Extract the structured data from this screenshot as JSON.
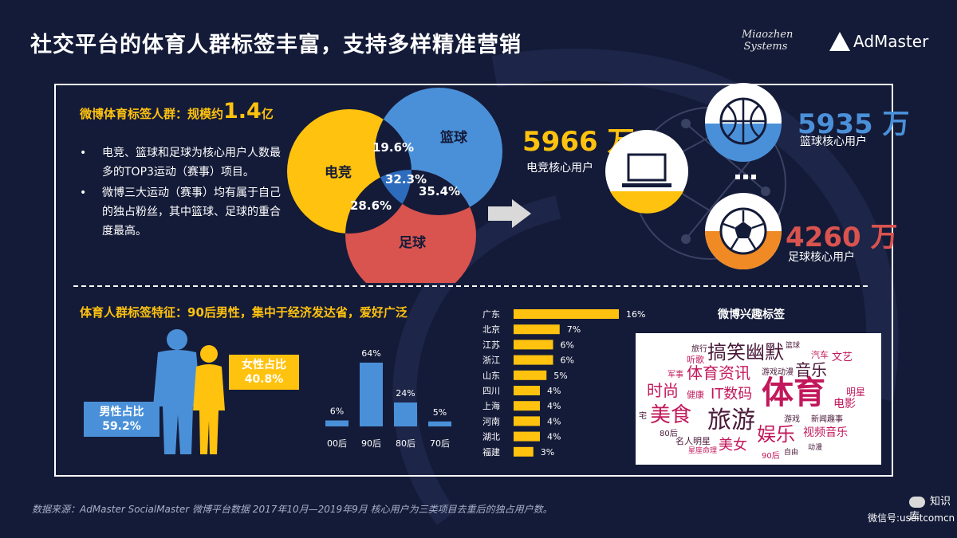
{
  "title": "社交平台的体育人群标签丰富，支持多样精准营销",
  "logos": {
    "miaozhen_line1": "Miaozhen",
    "miaozhen_line2": "Systems",
    "admaster": "AdMaster"
  },
  "venn_section": {
    "heading_prefix": "微博体育标签人群：规模约",
    "heading_number": "1.4",
    "heading_unit": "亿",
    "bullets": [
      "电竞、篮球和足球为核心用户人数最多的TOP3运动（赛事）项目。",
      "微博三大运动（赛事）均有属于自己的独占粉丝，其中篮球、足球的重合度最高。"
    ],
    "circles": [
      {
        "name": "电竞",
        "color": "#ffc20e"
      },
      {
        "name": "篮球",
        "color": "#4a90d9"
      },
      {
        "name": "足球",
        "color": "#d9534f"
      }
    ],
    "overlaps": {
      "esports_basketball": "19.6%",
      "all_three": "32.3%",
      "basketball_football": "35.4%",
      "esports_football": "28.6%"
    }
  },
  "core_users": [
    {
      "value": "5966 万",
      "label": "电竞核心用户",
      "color": "#ffc20e",
      "icon": "laptop-icon"
    },
    {
      "value": "5935 万",
      "label": "篮球核心用户",
      "color": "#4a90d9",
      "icon": "basketball-icon"
    },
    {
      "value": "4260 万",
      "label": "足球核心用户",
      "color": "#d9534f",
      "icon": "football-icon"
    }
  ],
  "features_section": {
    "heading": "体育人群标签特征：90后男性，集中于经济发达省，爱好广泛",
    "female_label": "女性占比",
    "female_value": "40.8%",
    "male_label": "男性占比",
    "male_value": "59.2%",
    "interest_title": "微博兴趣标签"
  },
  "chart_data": [
    {
      "type": "bar",
      "categories": [
        "00后",
        "90后",
        "80后",
        "70后"
      ],
      "values": [
        6,
        64,
        24,
        5
      ],
      "value_labels": [
        "6%",
        "64%",
        "24%",
        "5%"
      ],
      "ylim": [
        0,
        64
      ],
      "color": "#4a90d9"
    },
    {
      "type": "bar",
      "orientation": "horizontal",
      "categories": [
        "广东",
        "北京",
        "江苏",
        "浙江",
        "山东",
        "四川",
        "上海",
        "河南",
        "湖北",
        "福建"
      ],
      "values": [
        16,
        7,
        6,
        6,
        5,
        4,
        4,
        4,
        4,
        3
      ],
      "value_labels": [
        "16%",
        "7%",
        "6%",
        "6%",
        "5%",
        "4%",
        "4%",
        "4%",
        "4%",
        "3%"
      ],
      "xlim": [
        0,
        16
      ],
      "color": "#ffc20e"
    }
  ],
  "word_cloud": [
    "体育",
    "旅游",
    "搞笑幽默",
    "美食",
    "体育资讯",
    "娱乐",
    "时尚",
    "IT数码",
    "音乐",
    "美女",
    "视频音乐",
    "电影",
    "文艺",
    "汽车",
    "明星",
    "健康",
    "名人明星",
    "游戏动漫",
    "新闻趣事",
    "旅行",
    "听歌",
    "军事",
    "篮球",
    "90后",
    "80后",
    "宅",
    "游戏",
    "自由",
    "星座命理",
    "动漫"
  ],
  "footnote": "数据来源：AdMaster SocialMaster 微博平台数据 2017年10月—2019年9月 核心用户为三类项目去重后的独占用户数。",
  "wechat": {
    "name": "知识库",
    "account": "微信号:useitcomcn"
  }
}
